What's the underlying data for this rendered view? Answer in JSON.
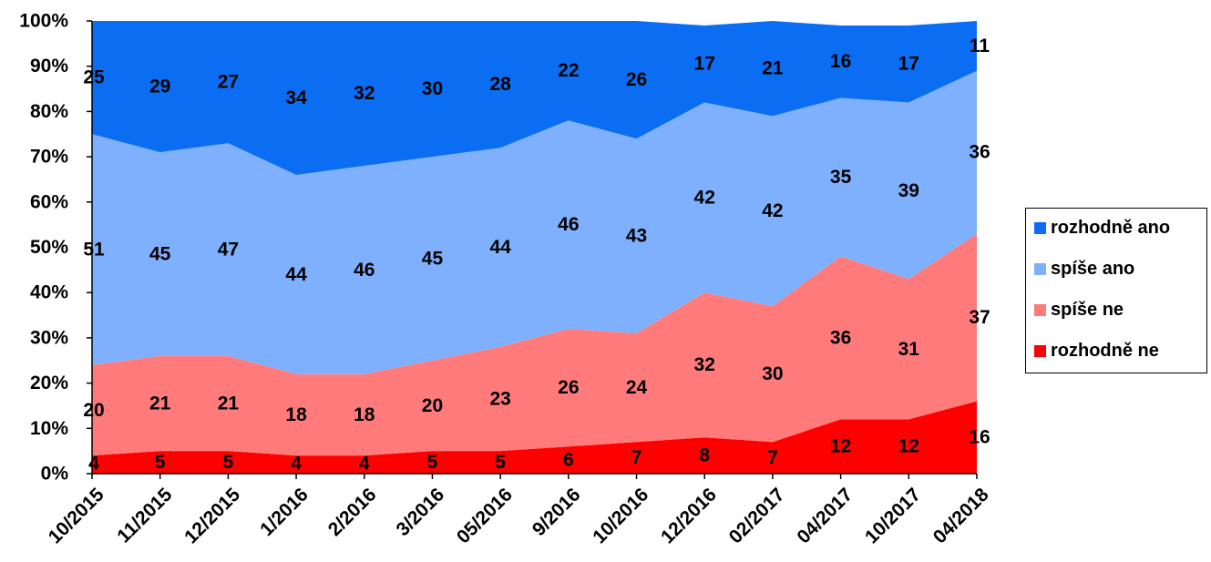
{
  "chart_data": {
    "type": "area",
    "stacked": "percent",
    "categories": [
      "10/2015",
      "11/2015",
      "12/2015",
      "1/2016",
      "2/2016",
      "3/2016",
      "05/2016",
      "9/2016",
      "10/2016",
      "12/2016",
      "02/2017",
      "04/2017",
      "10/2017",
      "04/2018"
    ],
    "series": [
      {
        "name": "rozhodně ne",
        "color": "#ff0000",
        "values": [
          4,
          5,
          5,
          4,
          4,
          5,
          5,
          6,
          7,
          8,
          7,
          12,
          12,
          16
        ]
      },
      {
        "name": "spíše ne",
        "color": "#ff7b7b",
        "values": [
          20,
          21,
          21,
          18,
          18,
          20,
          23,
          26,
          24,
          32,
          30,
          36,
          31,
          37
        ]
      },
      {
        "name": "spíše ano",
        "color": "#7eb0fe",
        "values": [
          51,
          45,
          47,
          44,
          46,
          45,
          44,
          46,
          43,
          42,
          42,
          35,
          39,
          36
        ]
      },
      {
        "name": "rozhodně ano",
        "color": "#0b6ef2",
        "values": [
          25,
          29,
          27,
          34,
          32,
          30,
          28,
          22,
          26,
          17,
          21,
          16,
          17,
          11
        ]
      }
    ],
    "y_ticks": [
      "0%",
      "10%",
      "20%",
      "30%",
      "40%",
      "50%",
      "60%",
      "70%",
      "80%",
      "90%",
      "100%"
    ],
    "ylim": [
      0,
      100
    ],
    "legend_position": "right",
    "legend_order": [
      "rozhodně ano",
      "spíše ano",
      "spíše ne",
      "rozhodně ne"
    ],
    "grid": false
  }
}
